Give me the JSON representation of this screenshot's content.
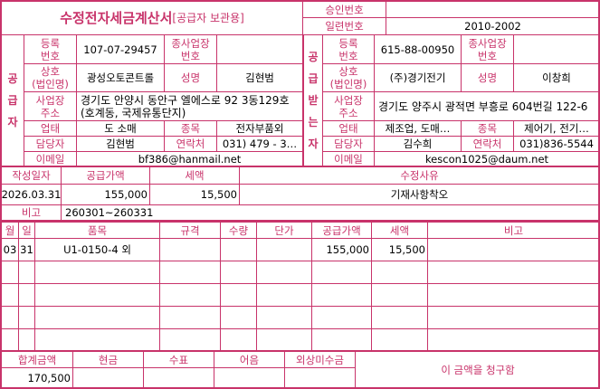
{
  "title": {
    "main": "수정전자세금계산서",
    "sub": "[공급자 보관용]"
  },
  "approval": {
    "label": "승인번호",
    "value": ""
  },
  "serial": {
    "label": "일련번호",
    "value": "2010-2002"
  },
  "labels": {
    "reg_no": "등록\n번호",
    "sub_biz": "종사업장\n번호",
    "company": "상호\n(법인명)",
    "name": "성명",
    "address": "사업장\n주소",
    "biz_type": "업태",
    "item": "종목",
    "manager": "담당자",
    "contact": "연락처",
    "email": "이메일"
  },
  "supplier": {
    "section_label": "공급자",
    "reg_no": "107-07-29457",
    "sub_biz": "",
    "company": "광성오토콘트롤",
    "name": "김현범",
    "address": "경기도 안양시 동안구 엘에스로 92 3동129호 (호계동, 국제유통단지)",
    "biz_type": "도 소매",
    "item": "전자부품외",
    "manager": "김현범",
    "contact": "031) 479 - 3…",
    "email": "bf386@hanmail.net"
  },
  "buyer": {
    "section_label": "공급받는자",
    "reg_no": "615-88-00950",
    "sub_biz": "",
    "company": "(주)경기전기",
    "name": "이창희",
    "address": "경기도 양주시 광적면 부흥로 604번길 122-6",
    "biz_type": "제조업, 도매…",
    "item": "제어기, 전기…",
    "manager": "김수희",
    "contact": "031)836-5544",
    "email": "kescon1025@daum.net"
  },
  "summary": {
    "headers": [
      "작성일자",
      "공급가액",
      "세액",
      "수정사유"
    ],
    "values": [
      "2026.03.31",
      "155,000",
      "15,500",
      "기재사항착오"
    ],
    "remark_label": "비고",
    "remark": "260301~260331"
  },
  "items": {
    "headers": [
      "월",
      "일",
      "품목",
      "규격",
      "수량",
      "단가",
      "공급가액",
      "세액",
      "비고"
    ],
    "rows": [
      [
        "03",
        "31",
        "U1-0150-4 외",
        "",
        "",
        "",
        "155,000",
        "15,500",
        ""
      ],
      [
        "",
        "",
        "",
        "",
        "",
        "",
        "",
        "",
        ""
      ],
      [
        "",
        "",
        "",
        "",
        "",
        "",
        "",
        "",
        ""
      ],
      [
        "",
        "",
        "",
        "",
        "",
        "",
        "",
        "",
        ""
      ],
      [
        "",
        "",
        "",
        "",
        "",
        "",
        "",
        "",
        ""
      ]
    ]
  },
  "totals": {
    "headers": [
      "합계금액",
      "현금",
      "수표",
      "어음",
      "외상미수금"
    ],
    "values": [
      "170,500",
      "",
      "",
      "",
      ""
    ],
    "claim": "이 금액을 청구함"
  },
  "colors": {
    "accent": "#c8336a"
  }
}
